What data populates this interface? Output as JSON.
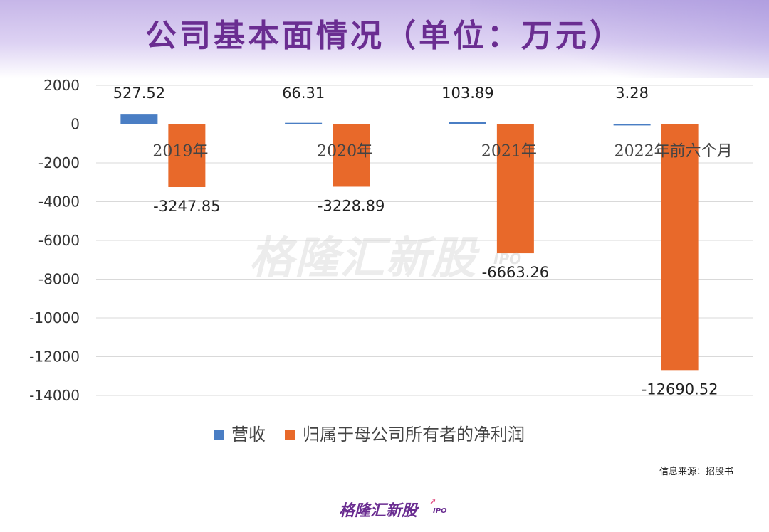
{
  "title": "公司基本面情况（单位：万元）",
  "watermark": {
    "text": "格隆汇新股",
    "sub": "IPO"
  },
  "source": "信息来源：招股书",
  "logo": {
    "text": "格隆汇新股",
    "sub": "IPO"
  },
  "chart_data": {
    "type": "bar",
    "title": "公司基本面情况（单位：万元）",
    "categories": [
      "2019年",
      "2020年",
      "2021年",
      "2022年前六个月"
    ],
    "series": [
      {
        "name": "营收",
        "color": "#4a7ec4",
        "values": [
          527.52,
          66.31,
          103.89,
          3.28
        ],
        "labels": [
          "527.52",
          "66.31",
          "103.89",
          "3.28"
        ]
      },
      {
        "name": "归属于母公司所有者的净利润",
        "color": "#e8692a",
        "values": [
          -3247.85,
          -3228.89,
          -6663.26,
          -12690.52
        ],
        "labels": [
          "-3247.85",
          "-3228.89",
          "-6663.26",
          "-12690.52"
        ]
      }
    ],
    "ylim": [
      -14000,
      2000
    ],
    "yticks": [
      2000,
      0,
      -2000,
      -4000,
      -6000,
      -8000,
      -10000,
      -12000,
      -14000
    ],
    "grid": true,
    "legend": "bottom",
    "xlabel": "",
    "ylabel": ""
  }
}
